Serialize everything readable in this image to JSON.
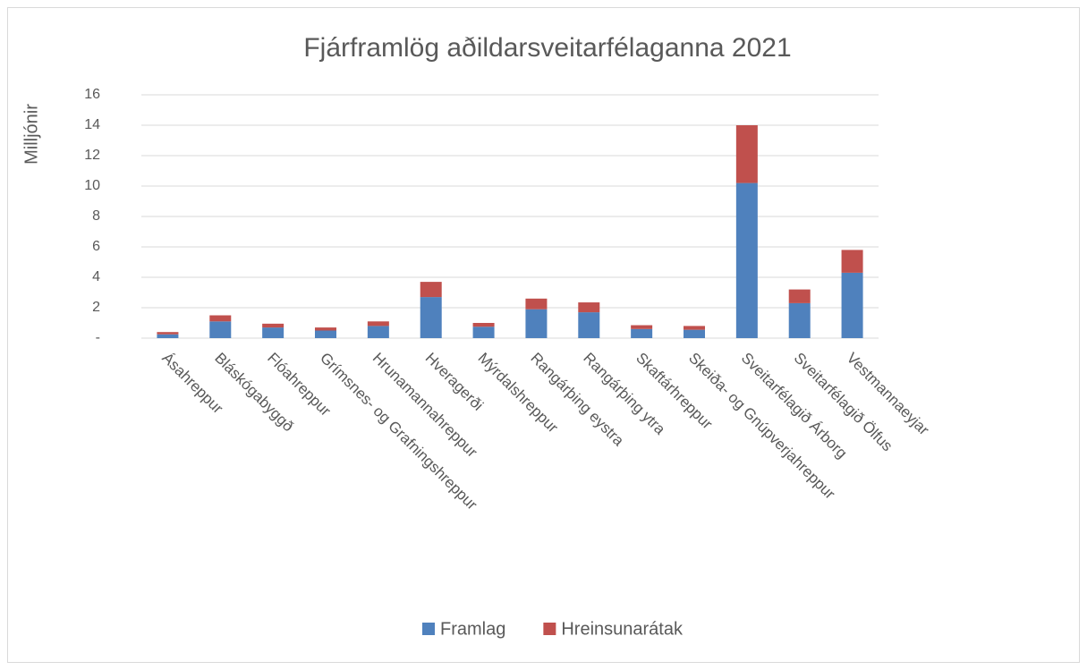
{
  "chart_data": {
    "type": "stacked_bar",
    "title": "Fjárframlög aðildarsveitarfélaganna 2021",
    "y_label": "Milljónir",
    "categories": [
      "Ásahreppur",
      "Bláskógabyggð",
      "Flóahreppur",
      "Grímsnes- og Grafningshreppur",
      "Hrunamannahreppur",
      "Hveragerði",
      "Mýrdalshreppur",
      "Rangárþing eystra",
      "Rangárþing ytra",
      "Skaftárhreppur",
      "Skeiða- og Gnúpverjahreppur",
      "Sveitarfélagið Árborg",
      "Sveitarfélagið Ölfus",
      "Vestmannaeyjar"
    ],
    "series": [
      {
        "name": "Framlag",
        "color": "#4f81bd",
        "values": [
          0.25,
          1.1,
          0.7,
          0.5,
          0.8,
          2.7,
          0.75,
          1.9,
          1.7,
          0.6,
          0.55,
          10.2,
          2.3,
          4.3
        ]
      },
      {
        "name": "Hreinsunarátak",
        "color": "#c0504d",
        "values": [
          0.15,
          0.4,
          0.25,
          0.2,
          0.3,
          1.0,
          0.25,
          0.7,
          0.65,
          0.25,
          0.25,
          3.8,
          0.9,
          1.5
        ]
      }
    ],
    "ylim": [
      0,
      16
    ],
    "yticks": [
      {
        "value": 0,
        "label": "-"
      },
      2,
      4,
      6,
      8,
      10,
      12,
      14,
      16
    ],
    "grid": true,
    "legend": "bottom"
  }
}
